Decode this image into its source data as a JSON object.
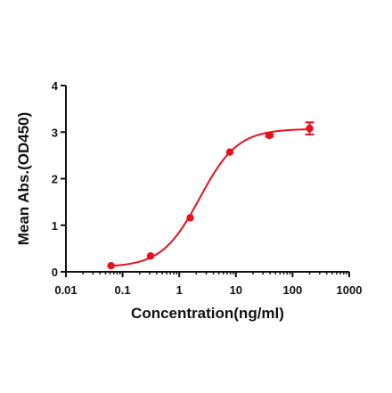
{
  "chart_data": {
    "type": "scatter",
    "title": "",
    "xlabel": "Concentration(ng/ml)",
    "ylabel": "Mean Abs.(OD450)",
    "xscale": "log",
    "xlim": [
      0.01,
      1000
    ],
    "ylim": [
      0,
      4
    ],
    "x_ticks": [
      "0.01",
      "0.1",
      "1",
      "10",
      "100",
      "1000"
    ],
    "y_ticks": [
      "0",
      "1",
      "2",
      "3",
      "4"
    ],
    "grid": false,
    "legend": "none",
    "colors": {
      "series": "#e8101a",
      "axis": "#111111"
    },
    "series": [
      {
        "points": [
          {
            "x": 0.0625,
            "y": 0.13,
            "err": 0.01
          },
          {
            "x": 0.3125,
            "y": 0.34,
            "err": 0.01
          },
          {
            "x": 1.5625,
            "y": 1.16,
            "err": 0.02
          },
          {
            "x": 7.8125,
            "y": 2.57,
            "err": 0.02
          },
          {
            "x": 39.0625,
            "y": 2.93,
            "err": 0.03
          },
          {
            "x": 200,
            "y": 3.08,
            "err": 0.13
          }
        ],
        "fit": {
          "model": "4PL",
          "bottom": 0.1,
          "top": 3.07,
          "ec50": 2.3,
          "hill": 1.3
        }
      }
    ]
  }
}
